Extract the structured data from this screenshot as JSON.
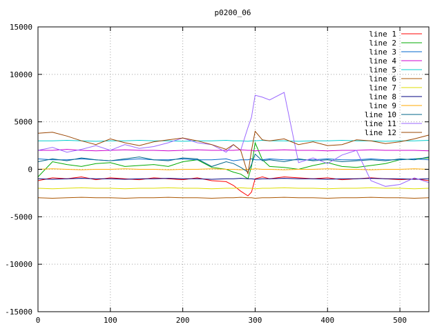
{
  "chart_data": {
    "type": "line",
    "title": "p0200_06",
    "xlabel": "",
    "ylabel": "",
    "xlim": [
      0,
      540
    ],
    "ylim": [
      -15000,
      15000
    ],
    "grid": true,
    "legend_position": "top-right",
    "x_ticks": [
      0,
      100,
      200,
      300,
      400,
      500
    ],
    "y_ticks": [
      -15000,
      -10000,
      -5000,
      0,
      5000,
      10000,
      15000
    ],
    "x": [
      0,
      20,
      40,
      60,
      80,
      100,
      120,
      140,
      160,
      180,
      200,
      220,
      240,
      260,
      270,
      280,
      290,
      295,
      300,
      310,
      320,
      340,
      360,
      380,
      400,
      420,
      440,
      460,
      480,
      500,
      520,
      540
    ],
    "series": [
      {
        "name": "line 1",
        "color": "#ff0000",
        "values": [
          -1200,
          -900,
          -1000,
          -800,
          -1100,
          -900,
          -1000,
          -1100,
          -900,
          -1000,
          -1100,
          -900,
          -1200,
          -1300,
          -1700,
          -2300,
          -2800,
          -2400,
          -1000,
          -800,
          -1000,
          -800,
          -900,
          -1000,
          -900,
          -1100,
          -1000,
          -900,
          -1000,
          -1100,
          -1000,
          -1200
        ]
      },
      {
        "name": "line 2",
        "color": "#00aa00",
        "values": [
          -800,
          800,
          500,
          300,
          600,
          700,
          300,
          400,
          500,
          300,
          800,
          1000,
          200,
          0,
          -300,
          -500,
          -1000,
          300,
          2800,
          1000,
          300,
          200,
          0,
          400,
          700,
          300,
          200,
          400,
          600,
          1000,
          1100,
          1200
        ]
      },
      {
        "name": "line 3",
        "color": "#0066cc",
        "values": [
          1100,
          1000,
          1000,
          1100,
          1000,
          900,
          1000,
          1100,
          1000,
          1000,
          1100,
          1000,
          1000,
          1100,
          900,
          1000,
          1000,
          1100,
          1000,
          1000,
          1100,
          1000,
          1000,
          1000,
          1100,
          1000,
          1000,
          1100,
          1000,
          1000,
          1100,
          1000
        ]
      },
      {
        "name": "line 4",
        "color": "#cc00cc",
        "values": [
          2000,
          2000,
          2100,
          2000,
          1950,
          2000,
          2050,
          2000,
          2000,
          1950,
          2000,
          2050,
          2000,
          2000,
          2000,
          2050,
          2000,
          2000,
          1950,
          2000,
          2000,
          2050,
          2000,
          2000,
          1950,
          2000,
          2000,
          2050,
          2000,
          2000,
          2000,
          1950
        ]
      },
      {
        "name": "line 5",
        "color": "#00cccc",
        "values": [
          3000,
          3000,
          3050,
          3000,
          2950,
          3000,
          3000,
          3050,
          3000,
          3000,
          2950,
          3000,
          3000,
          3050,
          3000,
          3000,
          2950,
          3000,
          3000,
          3050,
          3000,
          3000,
          2950,
          3000,
          3000,
          3050,
          3000,
          3000,
          2950,
          3000,
          3000,
          3050
        ]
      },
      {
        "name": "line 6",
        "color": "#aa5500",
        "values": [
          -3000,
          -3050,
          -3000,
          -2950,
          -3000,
          -3000,
          -3050,
          -3000,
          -3000,
          -2950,
          -3000,
          -3000,
          -3050,
          -3000,
          -3000,
          -2950,
          -3000,
          -3000,
          -3050,
          -3000,
          -3000,
          -2950,
          -3000,
          -3000,
          -3050,
          -3000,
          -3000,
          -2950,
          -3000,
          -3000,
          -3050,
          -3000
        ]
      },
      {
        "name": "line 7",
        "color": "#dddd00",
        "values": [
          -2000,
          -2050,
          -2000,
          -1950,
          -2000,
          -2000,
          -2050,
          -2000,
          -2000,
          -1950,
          -2000,
          -2000,
          -2050,
          -2000,
          -2000,
          -1950,
          -2000,
          -2000,
          -2050,
          -2000,
          -2000,
          -1950,
          -2000,
          -2000,
          -2050,
          -2000,
          -2000,
          -1950,
          -2000,
          -2000,
          -2050,
          -2000
        ]
      },
      {
        "name": "line 8",
        "color": "#000080",
        "values": [
          -1000,
          -1050,
          -1000,
          -950,
          -1000,
          -1000,
          -1050,
          -1000,
          -1000,
          -950,
          -1000,
          -1000,
          -1050,
          -1000,
          -1000,
          -950,
          -1000,
          -1000,
          -1050,
          -1000,
          -1000,
          -950,
          -1000,
          -1000,
          -1050,
          -1000,
          -1000,
          -950,
          -1000,
          -1000,
          -1050,
          -1000
        ]
      },
      {
        "name": "line 9",
        "color": "#ffaa00",
        "values": [
          0,
          50,
          0,
          -50,
          0,
          0,
          50,
          0,
          0,
          -50,
          0,
          0,
          50,
          0,
          0,
          -50,
          0,
          0,
          50,
          0,
          0,
          -50,
          0,
          0,
          50,
          0,
          0,
          -50,
          0,
          0,
          50,
          0
        ]
      },
      {
        "name": "line 10",
        "color": "#006688",
        "values": [
          800,
          1100,
          900,
          1200,
          1000,
          900,
          1100,
          1300,
          1000,
          900,
          1200,
          1100,
          300,
          800,
          600,
          200,
          -300,
          500,
          1600,
          900,
          1000,
          800,
          1100,
          900,
          1000,
          800,
          900,
          1000,
          900,
          1100,
          1000,
          1300
        ]
      },
      {
        "name": "line 11",
        "color": "#9966ff",
        "values": [
          2000,
          2300,
          1800,
          2100,
          2500,
          2000,
          2600,
          2200,
          2400,
          2800,
          3300,
          2800,
          2600,
          1800,
          2600,
          2000,
          4400,
          5500,
          7800,
          7600,
          7300,
          8100,
          700,
          1200,
          600,
          1500,
          2000,
          -1200,
          -1800,
          -1600,
          -900,
          -1400
        ]
      },
      {
        "name": "line 12",
        "color": "#994400",
        "values": [
          3800,
          3900,
          3500,
          3000,
          2600,
          3200,
          2800,
          2500,
          2900,
          3100,
          3300,
          3000,
          2600,
          2100,
          2600,
          2000,
          -500,
          2000,
          4000,
          3100,
          3000,
          3200,
          2600,
          2900,
          2500,
          2600,
          3100,
          3000,
          2700,
          2900,
          3200,
          3600
        ]
      }
    ]
  }
}
